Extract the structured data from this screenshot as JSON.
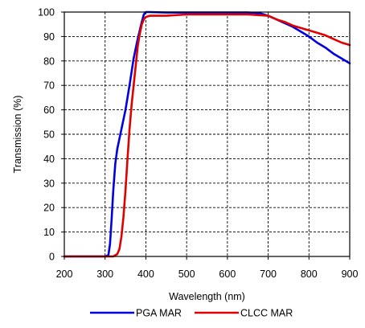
{
  "chart_data": {
    "type": "line",
    "title": "",
    "xlabel": "Wavelength (nm)",
    "ylabel": "Transmission (%)",
    "xlim": [
      200,
      900
    ],
    "ylim": [
      0,
      100
    ],
    "xticks": [
      200,
      300,
      400,
      500,
      600,
      700,
      800,
      900
    ],
    "yticks": [
      0,
      10,
      20,
      30,
      40,
      50,
      60,
      70,
      80,
      90,
      100
    ],
    "grid": true,
    "legend_position": "bottom",
    "series": [
      {
        "name": "PGA MAR",
        "color": "#0000e0",
        "x": [
          200,
          300,
          308,
          312,
          316,
          320,
          325,
          330,
          340,
          350,
          360,
          370,
          380,
          390,
          395,
          400,
          410,
          450,
          500,
          550,
          600,
          650,
          680,
          700,
          720,
          740,
          760,
          780,
          800,
          820,
          840,
          860,
          880,
          900
        ],
        "y": [
          0,
          0,
          0.5,
          5,
          15,
          27,
          38,
          44,
          52,
          60,
          70,
          81,
          89,
          96,
          99,
          100,
          100,
          99.8,
          99.8,
          99.8,
          99.8,
          99.8,
          99.5,
          98.5,
          97,
          95.5,
          94,
          92,
          90,
          87.5,
          85.5,
          83,
          81,
          79
        ]
      },
      {
        "name": "CLCC MAR",
        "color": "#e00000",
        "x": [
          200,
          310,
          320,
          330,
          335,
          340,
          345,
          350,
          355,
          360,
          365,
          370,
          375,
          380,
          385,
          390,
          395,
          400,
          410,
          420,
          450,
          500,
          550,
          600,
          650,
          700,
          720,
          740,
          760,
          780,
          800,
          820,
          840,
          860,
          880,
          900
        ],
        "y": [
          0,
          0,
          0,
          1,
          3,
          8,
          16,
          27,
          40,
          52,
          62,
          70,
          78,
          86,
          91,
          95,
          97,
          98,
          98.5,
          98.5,
          98.5,
          99,
          99,
          99,
          99,
          98.5,
          97,
          96,
          94.5,
          93.5,
          92.5,
          91.5,
          90.5,
          89,
          87.5,
          86.5
        ]
      }
    ]
  }
}
